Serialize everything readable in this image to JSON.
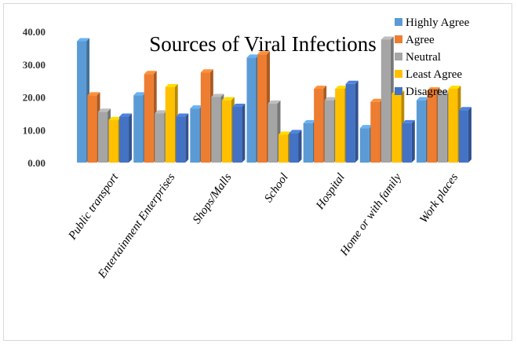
{
  "chart_data": {
    "type": "bar",
    "title": "Sources of Viral Infections",
    "xlabel": "",
    "ylabel": "",
    "ylim": [
      0,
      40
    ],
    "yticks": [
      "0.00",
      "10.00",
      "20.00",
      "30.00",
      "40.00"
    ],
    "categories": [
      "Public transport",
      "Entertainment Enterprises",
      "Shops/Malls",
      "School",
      "Hospital",
      "Home or with family",
      "Work places"
    ],
    "series": [
      {
        "name": "Highly Agree",
        "color": "#5b9bd5",
        "values": [
          37,
          20.5,
          16.5,
          32,
          12,
          10.5,
          19
        ]
      },
      {
        "name": "Agree",
        "color": "#ed7d31",
        "values": [
          20.5,
          27,
          27.5,
          33,
          22.5,
          18.5,
          22
        ]
      },
      {
        "name": "Neutral",
        "color": "#a5a5a5",
        "values": [
          15.5,
          15,
          20,
          18,
          19,
          37.5,
          21
        ]
      },
      {
        "name": "Least Agree",
        "color": "#ffc000",
        "values": [
          13,
          23,
          19,
          8.5,
          22.5,
          21,
          22.5
        ]
      },
      {
        "name": "Disagree",
        "color": "#4472c4",
        "values": [
          14,
          14,
          17,
          9,
          24,
          12,
          16
        ]
      }
    ],
    "grid": false,
    "legend": "top-right"
  }
}
